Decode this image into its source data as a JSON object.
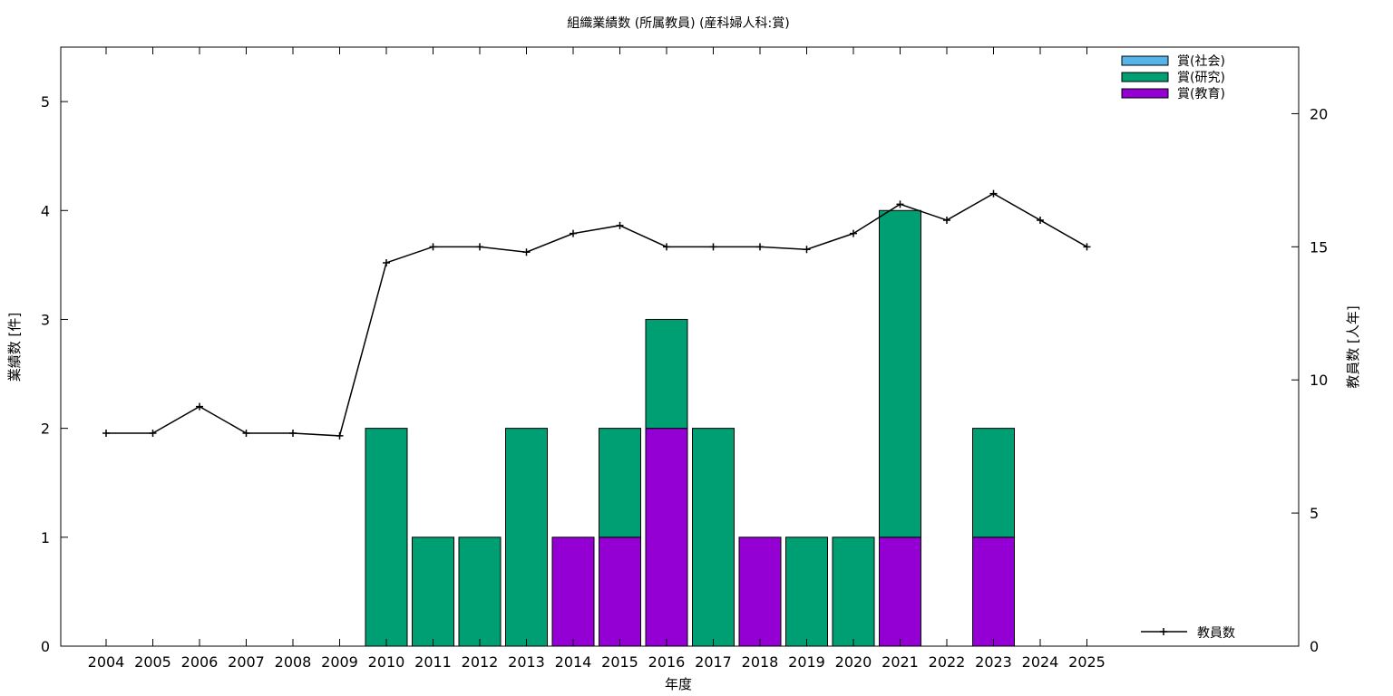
{
  "chart_data": {
    "type": "bar",
    "title": "組織業績数 (所属教員) (産科婦人科:賞)",
    "xlabel": "年度",
    "ylabel": "業績数 [件]",
    "y2label": "教員数 [人年]",
    "categories": [
      "2004",
      "2005",
      "2006",
      "2007",
      "2008",
      "2009",
      "2010",
      "2011",
      "2012",
      "2013",
      "2014",
      "2015",
      "2016",
      "2017",
      "2018",
      "2019",
      "2020",
      "2021",
      "2022",
      "2023",
      "2024",
      "2025"
    ],
    "ylim": [
      0,
      5.5
    ],
    "yticks": [
      0,
      1,
      2,
      3,
      4,
      5
    ],
    "y2lim": [
      0,
      22.5
    ],
    "y2ticks": [
      0,
      5,
      10,
      15,
      20
    ],
    "stacked": true,
    "series": [
      {
        "name": "賞(教育)",
        "color": "#9400d3",
        "values": [
          0,
          0,
          0,
          0,
          0,
          0,
          0,
          0,
          0,
          0,
          1,
          1,
          2,
          0,
          1,
          0,
          0,
          1,
          0,
          1,
          0,
          0
        ]
      },
      {
        "name": "賞(研究)",
        "color": "#009e73",
        "values": [
          0,
          0,
          0,
          0,
          0,
          0,
          2,
          1,
          1,
          2,
          0,
          1,
          1,
          2,
          0,
          1,
          1,
          3,
          0,
          1,
          0,
          0
        ]
      },
      {
        "name": "賞(社会)",
        "color": "#56b4e9",
        "values": [
          0,
          0,
          0,
          0,
          0,
          0,
          0,
          0,
          0,
          0,
          0,
          0,
          0,
          0,
          0,
          0,
          0,
          0,
          0,
          0,
          0,
          0
        ]
      }
    ],
    "line_series": {
      "name": "教員数",
      "axis": "y2",
      "color": "#000000",
      "values": [
        8,
        8,
        9,
        8,
        8,
        7.9,
        14.4,
        15,
        15,
        14.8,
        15.5,
        15.8,
        15,
        15,
        15,
        14.9,
        15.5,
        16.6,
        16,
        17,
        16,
        15
      ]
    },
    "legend_placement": "top-right",
    "grid": false
  }
}
